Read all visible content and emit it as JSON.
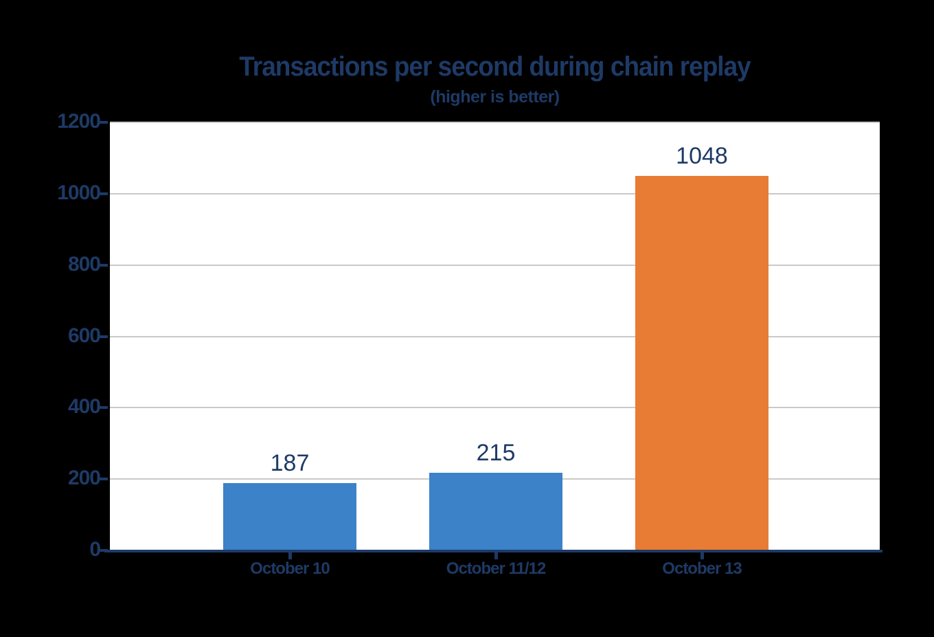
{
  "page": {
    "background": "#000000"
  },
  "chart_data": {
    "type": "bar",
    "title": "Transactions per second during chain replay",
    "subtitle": "(higher is better)",
    "categories": [
      "October 10",
      "October 11/12",
      "October 13"
    ],
    "values": [
      187,
      215,
      1048
    ],
    "data_labels": [
      "187",
      "215",
      "1048"
    ],
    "bar_colors": [
      "#3B82C9",
      "#3B82C9",
      "#E87C34"
    ],
    "yticks": [
      0,
      200,
      400,
      600,
      800,
      1000,
      1200
    ],
    "ylim": [
      0,
      1200
    ],
    "xlabel": "",
    "ylabel": "",
    "grid": true,
    "legend": "none",
    "colors": {
      "text": "#1E3A66",
      "axis": "#1E3A66",
      "gridline": "#C9C9C9",
      "plot_background": "#FFFFFF"
    }
  }
}
